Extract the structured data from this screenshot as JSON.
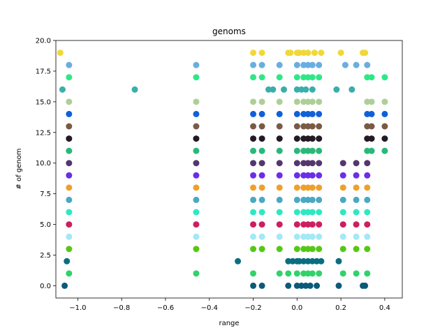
{
  "chart_data": {
    "type": "scatter",
    "title": "genoms",
    "xlabel": "range",
    "ylabel": "# of genom",
    "xlim": [
      -1.1,
      0.48
    ],
    "ylim": [
      -1.0,
      20.0
    ],
    "xticks": [
      -1.0,
      -0.8,
      -0.6,
      -0.4,
      -0.2,
      0.0,
      0.2,
      0.4
    ],
    "xtick_labels": [
      "−1.0",
      "−0.8",
      "−0.6",
      "−0.4",
      "−0.2",
      "0.0",
      "0.2",
      "0.4"
    ],
    "yticks": [
      0.0,
      2.5,
      5.0,
      7.5,
      10.0,
      12.5,
      15.0,
      17.5,
      20.0
    ],
    "ytick_labels": [
      "0.0",
      "2.5",
      "5.0",
      "7.5",
      "10.0",
      "12.5",
      "15.0",
      "17.5",
      "20.0"
    ],
    "grid": false,
    "series": [
      {
        "y": 0,
        "color": "#0b5a7a",
        "x": [
          -1.06,
          -0.2,
          -0.16,
          -0.04,
          0.0,
          0.02,
          0.04,
          0.06,
          0.09,
          0.19,
          0.3,
          0.31
        ]
      },
      {
        "y": 1,
        "color": "#2fd36a",
        "x": [
          -1.04,
          -0.46,
          -0.2,
          -0.08,
          -0.04,
          0.0,
          0.03,
          0.05,
          0.07,
          0.1,
          0.21,
          0.27,
          0.32
        ]
      },
      {
        "y": 2,
        "color": "#0a6e80",
        "x": [
          -1.05,
          -0.27,
          -0.04,
          -0.02,
          0.0,
          0.01,
          0.03,
          0.05,
          0.07,
          0.09,
          0.11,
          0.19
        ]
      },
      {
        "y": 3,
        "color": "#55c815",
        "x": [
          -1.04,
          -0.46,
          -0.2,
          -0.16,
          -0.08,
          0.0,
          0.03,
          0.05,
          0.07,
          0.1,
          0.21,
          0.27,
          0.32
        ]
      },
      {
        "y": 4,
        "color": "#a3e8f5",
        "x": [
          -1.04,
          -0.46,
          -0.2,
          -0.16,
          -0.08,
          0.0,
          0.03,
          0.05,
          0.07,
          0.1,
          0.21,
          0.27,
          0.32
        ]
      },
      {
        "y": 5,
        "color": "#cc1f5e",
        "x": [
          -1.04,
          -0.46,
          -0.2,
          -0.16,
          -0.08,
          0.0,
          0.03,
          0.05,
          0.07,
          0.1,
          0.21,
          0.27,
          0.32
        ]
      },
      {
        "y": 6,
        "color": "#2ee8c2",
        "x": [
          -1.04,
          -0.46,
          -0.2,
          -0.16,
          -0.08,
          0.0,
          0.03,
          0.05,
          0.07,
          0.1,
          0.21,
          0.27,
          0.32
        ]
      },
      {
        "y": 7,
        "color": "#4aa8c4",
        "x": [
          -1.04,
          -0.46,
          -0.2,
          -0.16,
          -0.08,
          0.0,
          0.03,
          0.05,
          0.07,
          0.1,
          0.21,
          0.27,
          0.32
        ]
      },
      {
        "y": 8,
        "color": "#f0a02a",
        "x": [
          -1.04,
          -0.46,
          -0.2,
          -0.16,
          -0.08,
          0.0,
          0.03,
          0.05,
          0.07,
          0.1,
          0.21,
          0.27,
          0.32
        ]
      },
      {
        "y": 9,
        "color": "#6b2ee8",
        "x": [
          -1.04,
          -0.46,
          -0.2,
          -0.16,
          -0.08,
          0.0,
          0.03,
          0.05,
          0.07,
          0.1,
          0.21,
          0.27,
          0.32
        ]
      },
      {
        "y": 10,
        "color": "#55356e",
        "x": [
          -1.04,
          -0.46,
          -0.2,
          -0.16,
          -0.08,
          0.0,
          0.03,
          0.05,
          0.07,
          0.1,
          0.21,
          0.27,
          0.32
        ]
      },
      {
        "y": 11,
        "color": "#28b87a",
        "x": [
          -1.04,
          -0.46,
          -0.2,
          -0.16,
          -0.08,
          0.0,
          0.03,
          0.05,
          0.07,
          0.1,
          0.32,
          0.34,
          0.4
        ]
      },
      {
        "y": 12,
        "color": "#231a24",
        "x": [
          -1.04,
          -0.46,
          -0.2,
          -0.16,
          -0.08,
          0.0,
          0.03,
          0.05,
          0.07,
          0.1,
          0.32,
          0.34,
          0.4
        ]
      },
      {
        "y": 13,
        "color": "#7a5a44",
        "x": [
          -1.04,
          -0.46,
          -0.2,
          -0.16,
          -0.08,
          0.0,
          0.03,
          0.05,
          0.07,
          0.1,
          0.32,
          0.34,
          0.4
        ]
      },
      {
        "y": 14,
        "color": "#1060d8",
        "x": [
          -1.04,
          -0.46,
          -0.2,
          -0.16,
          -0.08,
          0.0,
          0.03,
          0.05,
          0.07,
          0.1,
          0.32,
          0.34,
          0.4
        ]
      },
      {
        "y": 15,
        "color": "#aecf98",
        "x": [
          -1.04,
          -0.46,
          -0.2,
          -0.16,
          -0.08,
          0.0,
          0.03,
          0.05,
          0.07,
          0.1,
          0.32,
          0.34,
          0.4
        ]
      },
      {
        "y": 16,
        "color": "#3aaeaa",
        "x": [
          -1.07,
          -0.74,
          -0.13,
          -0.11,
          -0.06,
          0.0,
          0.02,
          0.04,
          0.07,
          0.18,
          0.25
        ]
      },
      {
        "y": 17,
        "color": "#2ee888",
        "x": [
          -1.04,
          -0.46,
          -0.2,
          -0.16,
          -0.08,
          0.0,
          0.03,
          0.05,
          0.07,
          0.1,
          0.32,
          0.34,
          0.4
        ]
      },
      {
        "y": 18,
        "color": "#6aaee0",
        "x": [
          -1.04,
          -0.46,
          -0.2,
          -0.16,
          -0.08,
          0.0,
          0.03,
          0.05,
          0.07,
          0.1,
          0.22,
          0.27,
          0.32
        ]
      },
      {
        "y": 19,
        "color": "#f0d838",
        "x": [
          -1.08,
          -0.2,
          -0.16,
          -0.04,
          -0.03,
          0.0,
          0.01,
          0.03,
          0.05,
          0.08,
          0.11,
          0.2,
          0.3,
          0.31
        ]
      }
    ]
  }
}
